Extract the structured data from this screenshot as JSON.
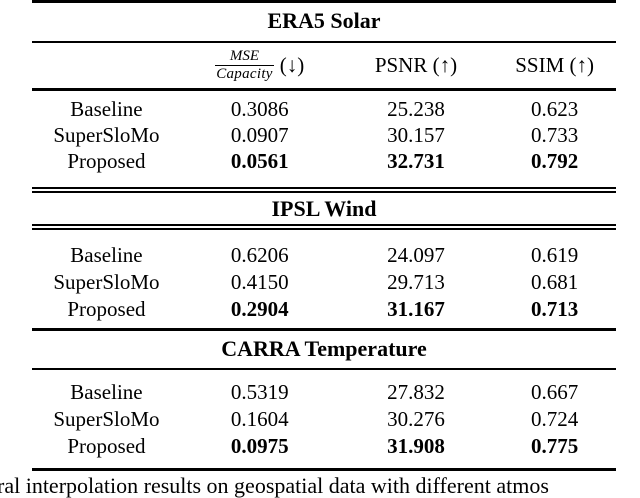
{
  "colors": {
    "background": "#ffffff",
    "text": "#000000",
    "rule": "#000000"
  },
  "columns": {
    "metric_fraction_numerator": "MSE",
    "metric_fraction_denominator": "Capacity",
    "metric_suffix": "(↓)",
    "psnr": "PSNR (↑)",
    "ssim": "SSIM (↑)"
  },
  "sections": [
    {
      "title": "ERA5 Solar",
      "rows": [
        {
          "label": "Baseline",
          "mse": "0.3086",
          "psnr": "25.238",
          "ssim": "0.623"
        },
        {
          "label": "SuperSloMo",
          "mse": "0.0907",
          "psnr": "30.157",
          "ssim": "0.733"
        },
        {
          "label": "Proposed",
          "mse": "0.0561",
          "psnr": "32.731",
          "ssim": "0.792"
        }
      ]
    },
    {
      "title": "IPSL Wind",
      "rows": [
        {
          "label": "Baseline",
          "mse": "0.6206",
          "psnr": "24.097",
          "ssim": "0.619"
        },
        {
          "label": "SuperSloMo",
          "mse": "0.4150",
          "psnr": "29.713",
          "ssim": "0.681"
        },
        {
          "label": "Proposed",
          "mse": "0.2904",
          "psnr": "31.167",
          "ssim": "0.713"
        }
      ]
    },
    {
      "title": "CARRA Temperature",
      "rows": [
        {
          "label": "Baseline",
          "mse": "0.5319",
          "psnr": "27.832",
          "ssim": "0.667"
        },
        {
          "label": "SuperSloMo",
          "mse": "0.1604",
          "psnr": "30.276",
          "ssim": "0.724"
        },
        {
          "label": "Proposed",
          "mse": "0.0975",
          "psnr": "31.908",
          "ssim": "0.775"
        }
      ]
    }
  ],
  "caption_fragment": "ral interpolation results on geospatial data with different atmos"
}
